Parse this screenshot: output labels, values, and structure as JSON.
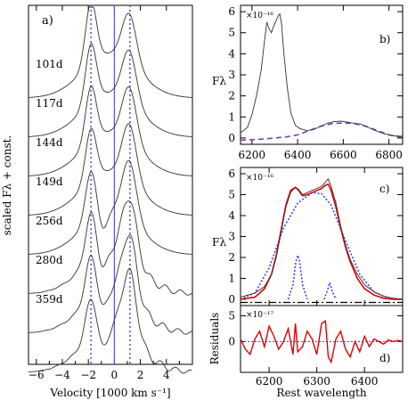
{
  "chart_data": [
    {
      "panel": "a)",
      "type": "line",
      "xlabel": "Velocity [1000 km s⁻¹]",
      "ylabel": "scaled Fλ + const.",
      "xlim": [
        -6.6,
        6.0
      ],
      "xticks": [
        -6,
        -4,
        -2,
        0,
        2,
        4
      ],
      "reference_lines": {
        "solid": 0.0,
        "dotted": [
          -1.8,
          1.2
        ]
      },
      "series": [
        {
          "name": "101d",
          "epoch_days": 101
        },
        {
          "name": "117d",
          "epoch_days": 117
        },
        {
          "name": "144d",
          "epoch_days": 144
        },
        {
          "name": "149d",
          "epoch_days": 149
        },
        {
          "name": "256d",
          "epoch_days": 256
        },
        {
          "name": "280d",
          "epoch_days": 280
        },
        {
          "name": "359d",
          "epoch_days": 359
        }
      ]
    },
    {
      "panel": "b)",
      "type": "line",
      "ylabel": "Fλ",
      "scale_label": "×10⁻¹⁶",
      "xlim": [
        6150,
        6860
      ],
      "ylim": [
        -0.3,
        6.3
      ],
      "xticks": [
        6200,
        6400,
        6600,
        6800
      ],
      "yticks": [
        0,
        1,
        2,
        3,
        4,
        5,
        6
      ],
      "spectrum": {
        "x": [
          6150,
          6180,
          6200,
          6220,
          6240,
          6255,
          6265,
          6275,
          6285,
          6295,
          6305,
          6315,
          6322,
          6330,
          6340,
          6355,
          6370,
          6390,
          6410,
          6440,
          6470,
          6500,
          6530,
          6560,
          6590,
          6620,
          6650,
          6680,
          6710,
          6740,
          6780,
          6820,
          6860
        ],
        "y": [
          0.25,
          0.5,
          1.1,
          2.0,
          3.2,
          4.6,
          5.5,
          5.2,
          5.0,
          5.3,
          5.55,
          5.8,
          5.9,
          5.4,
          4.0,
          2.4,
          1.2,
          0.6,
          0.45,
          0.35,
          0.4,
          0.55,
          0.7,
          0.78,
          0.8,
          0.75,
          0.7,
          0.65,
          0.5,
          0.35,
          0.2,
          0.1,
          0.08
        ]
      },
      "model": {
        "x": [
          6150,
          6200,
          6250,
          6300,
          6350,
          6400,
          6450,
          6500,
          6550,
          6600,
          6650,
          6700,
          6750,
          6800,
          6860
        ],
        "y": [
          -0.1,
          -0.08,
          -0.05,
          0.0,
          0.05,
          0.15,
          0.35,
          0.55,
          0.68,
          0.72,
          0.68,
          0.55,
          0.35,
          0.15,
          0.02
        ]
      }
    },
    {
      "panel": "c)",
      "type": "line",
      "ylabel": "Fλ",
      "scale_label": "×10⁻¹⁶",
      "xlim": [
        6140,
        6480
      ],
      "ylim": [
        -0.3,
        6.3
      ],
      "xticks": [
        6200,
        6300,
        6400
      ],
      "yticks": [
        0,
        1,
        2,
        3,
        4,
        5,
        6
      ],
      "observed": {
        "x": [
          6140,
          6170,
          6190,
          6205,
          6215,
          6225,
          6235,
          6245,
          6255,
          6262,
          6270,
          6280,
          6290,
          6300,
          6310,
          6318,
          6324,
          6330,
          6340,
          6350,
          6360,
          6370,
          6385,
          6400,
          6420,
          6440,
          6460,
          6480
        ],
        "y": [
          0.1,
          0.3,
          0.6,
          1.2,
          2.0,
          3.2,
          4.4,
          5.1,
          5.35,
          5.25,
          5.0,
          5.1,
          5.2,
          5.3,
          5.4,
          5.6,
          5.75,
          5.4,
          4.6,
          3.5,
          2.6,
          1.9,
          1.2,
          0.7,
          0.35,
          0.15,
          0.05,
          0.0
        ]
      },
      "fit": {
        "x": [
          6140,
          6170,
          6190,
          6205,
          6215,
          6225,
          6235,
          6245,
          6255,
          6262,
          6270,
          6280,
          6290,
          6300,
          6310,
          6318,
          6324,
          6330,
          6340,
          6350,
          6360,
          6370,
          6385,
          6400,
          6420,
          6440,
          6460,
          6480
        ],
        "y": [
          0.0,
          0.1,
          0.5,
          1.2,
          2.1,
          3.3,
          4.5,
          5.2,
          5.35,
          5.2,
          4.95,
          5.0,
          5.1,
          5.2,
          5.3,
          5.45,
          5.5,
          5.2,
          4.4,
          3.4,
          2.5,
          1.8,
          1.0,
          0.5,
          0.2,
          0.05,
          0.0,
          0.0
        ]
      },
      "components": [
        {
          "x": [
            6140,
            6170,
            6200,
            6230,
            6260,
            6290,
            6310,
            6330,
            6360,
            6390,
            6420,
            6450,
            6480
          ],
          "y": [
            0.0,
            0.3,
            1.5,
            3.4,
            4.6,
            5.1,
            5.05,
            4.5,
            2.8,
            1.2,
            0.35,
            0.05,
            0.0
          ]
        },
        {
          "x": [
            6240,
            6250,
            6256,
            6260,
            6264,
            6270,
            6280
          ],
          "y": [
            0.0,
            0.7,
            1.8,
            2.1,
            1.8,
            0.7,
            0.0
          ]
        },
        {
          "x": [
            6315,
            6322,
            6327,
            6332,
            6340
          ],
          "y": [
            0.0,
            0.4,
            0.8,
            0.4,
            0.0
          ]
        }
      ],
      "continuum": {
        "x": [
          6140,
          6480
        ],
        "y": [
          -0.15,
          -0.15
        ]
      }
    },
    {
      "panel": "d)",
      "type": "line",
      "xlabel": "Rest wavelength",
      "ylabel": "Residuals",
      "scale_label": "×10⁻¹⁷",
      "xlim": [
        6140,
        6480
      ],
      "ylim": [
        -6,
        7
      ],
      "xticks": [
        6200,
        6300,
        6400
      ],
      "yticks": [
        0,
        5
      ],
      "residuals": {
        "x": [
          6140,
          6150,
          6160,
          6170,
          6180,
          6190,
          6200,
          6210,
          6220,
          6230,
          6240,
          6250,
          6255,
          6260,
          6270,
          6280,
          6290,
          6300,
          6310,
          6318,
          6324,
          6330,
          6340,
          6350,
          6360,
          6370,
          6380,
          6390,
          6400,
          6410,
          6420,
          6430,
          6440,
          6450,
          6460,
          6470,
          6480
        ],
        "y": [
          0.5,
          -1.5,
          -2.5,
          0.5,
          2.0,
          -1.0,
          3.0,
          1.0,
          -1.5,
          0.0,
          2.5,
          -2.5,
          3.5,
          -2.0,
          -1.0,
          2.0,
          0.5,
          -2.5,
          3.5,
          4.0,
          -3.0,
          -4.0,
          0.5,
          2.0,
          -1.5,
          -3.0,
          0.0,
          -2.0,
          1.0,
          -1.0,
          0.5,
          0.0,
          -0.5,
          0.3,
          0.0,
          0.2,
          0.0
        ]
      }
    }
  ],
  "colors": {
    "axis": "#000000",
    "spectrum": "#333333",
    "fit": "#e00000",
    "component": "#3333ff",
    "model": "#7a3fa8",
    "reference": "#5555dd",
    "continuum": "#000000"
  }
}
